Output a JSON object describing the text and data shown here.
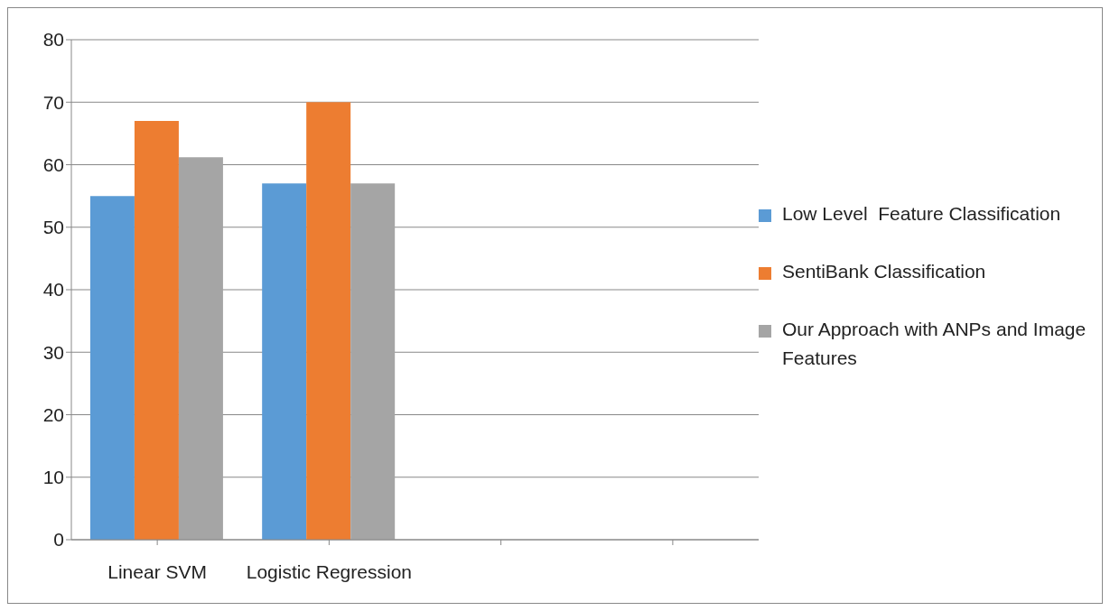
{
  "chart_data": {
    "type": "bar",
    "categories": [
      "Linear SVM",
      "Logistic Regression",
      null,
      null
    ],
    "series": [
      {
        "name": "Low Level  Feature Classification",
        "color": "#5b9bd5",
        "values": [
          55,
          57,
          null,
          null
        ]
      },
      {
        "name": "SentiBank Classification",
        "color": "#ed7d31",
        "values": [
          67,
          70,
          null,
          null
        ]
      },
      {
        "name": "Our Approach with ANPs and Image Features",
        "color": "#a5a5a5",
        "values": [
          61.2,
          57,
          null,
          null
        ]
      }
    ],
    "ylim": [
      0,
      80
    ],
    "yticks": [
      0,
      10,
      20,
      30,
      40,
      50,
      60,
      70,
      80
    ],
    "grid": "y",
    "legend": "right"
  }
}
